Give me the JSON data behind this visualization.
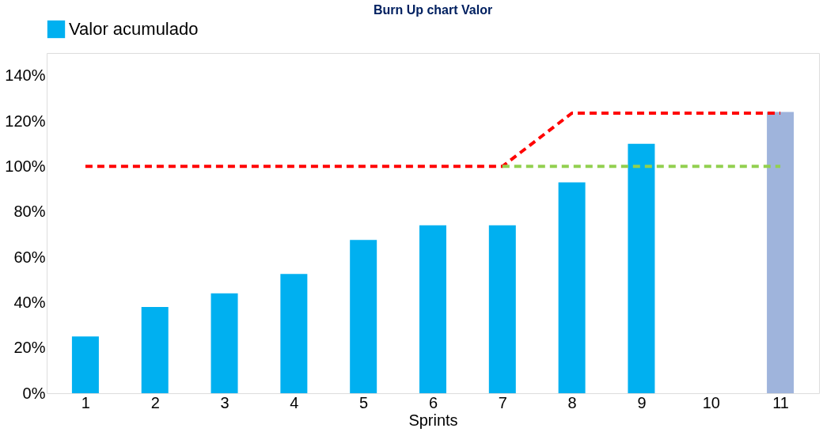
{
  "chart_data": {
    "type": "bar",
    "title": "Burn Up chart Valor",
    "xlabel": "Sprints",
    "categories": [
      "1",
      "2",
      "3",
      "4",
      "5",
      "6",
      "7",
      "8",
      "9",
      "10",
      "11"
    ],
    "ylim": [
      0,
      150
    ],
    "yticks": [
      {
        "value": 0,
        "label": "0%"
      },
      {
        "value": 20,
        "label": "20%"
      },
      {
        "value": 40,
        "label": "40%"
      },
      {
        "value": 60,
        "label": "60%"
      },
      {
        "value": 80,
        "label": "80%"
      },
      {
        "value": 100,
        "label": "100%"
      },
      {
        "value": 120,
        "label": "120%"
      },
      {
        "value": 140,
        "label": "140%"
      }
    ],
    "grid": false,
    "legend": "top",
    "series": [
      {
        "name": "Valor acumulado",
        "color": "#00b0f0",
        "colors": [
          "#00b0f0",
          "#00b0f0",
          "#00b0f0",
          "#00b0f0",
          "#00b0f0",
          "#00b0f0",
          "#00b0f0",
          "#00b0f0",
          "#00b0f0",
          "#00b0f0",
          "#9fb4dc"
        ],
        "values": [
          25,
          38,
          44,
          52.6,
          67.6,
          74,
          74,
          93,
          110,
          null,
          124
        ]
      },
      {
        "type": "line",
        "color": "#ff0000",
        "line_style": "dashed",
        "values": [
          100,
          100,
          100,
          100,
          100,
          100,
          100,
          123.5,
          123.5,
          123.5,
          123.5
        ]
      },
      {
        "type": "line",
        "color": "#92d050",
        "line_style": "dashed",
        "values": [
          null,
          null,
          null,
          null,
          null,
          null,
          100,
          100,
          100,
          100,
          100
        ]
      }
    ]
  }
}
